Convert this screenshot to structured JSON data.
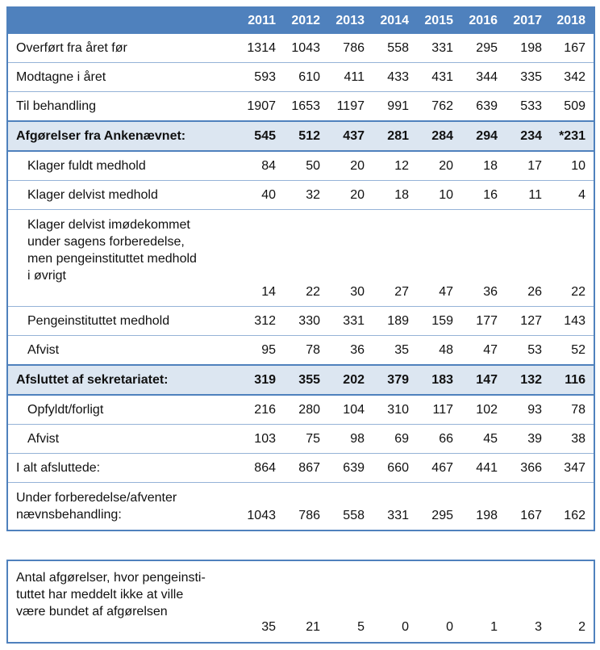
{
  "colors": {
    "header_bg": "#4f81bd",
    "header_text": "#ffffff",
    "highlight_row_bg": "#dce6f1",
    "accent_border": "#4f81bd",
    "row_separator": "#95b3d7",
    "body_text": "#111111"
  },
  "main_table": {
    "years": [
      "2011",
      "2012",
      "2013",
      "2014",
      "2015",
      "2016",
      "2017",
      "2018"
    ],
    "rows": [
      {
        "label": "Overført fra året før",
        "values": [
          "1314",
          "1043",
          "786",
          "558",
          "331",
          "295",
          "198",
          "167"
        ],
        "style": "normal",
        "indent": false
      },
      {
        "label": "Modtagne i året",
        "values": [
          "593",
          "610",
          "411",
          "433",
          "431",
          "344",
          "335",
          "342"
        ],
        "style": "normal",
        "indent": false
      },
      {
        "label": "Til behandling",
        "values": [
          "1907",
          "1653",
          "1197",
          "991",
          "762",
          "639",
          "533",
          "509"
        ],
        "style": "normal",
        "indent": false
      },
      {
        "label": "Afgørelser fra Ankenævnet:",
        "values": [
          "545",
          "512",
          "437",
          "281",
          "284",
          "294",
          "234",
          "*231"
        ],
        "style": "highlight",
        "indent": false
      },
      {
        "label": "Klager fuldt medhold",
        "values": [
          "84",
          "50",
          "20",
          "12",
          "20",
          "18",
          "17",
          "10"
        ],
        "style": "normal",
        "indent": true
      },
      {
        "label": "Klager delvist medhold",
        "values": [
          "40",
          "32",
          "20",
          "18",
          "10",
          "16",
          "11",
          "4"
        ],
        "style": "normal",
        "indent": true
      },
      {
        "label_lines": [
          "Klager delvist imødekommet",
          "under sagens forberedelse,",
          "men pengeinstituttet medhold",
          "i øvrigt"
        ],
        "values": [
          "14",
          "22",
          "30",
          "27",
          "47",
          "36",
          "26",
          "22"
        ],
        "style": "normal",
        "indent": true,
        "values_bottom": true,
        "label_pad_bottom": true
      },
      {
        "label": "Pengeinstituttet medhold",
        "values": [
          "312",
          "330",
          "331",
          "189",
          "159",
          "177",
          "127",
          "143"
        ],
        "style": "normal",
        "indent": true
      },
      {
        "label": "Afvist",
        "values": [
          "95",
          "78",
          "36",
          "35",
          "48",
          "47",
          "53",
          "52"
        ],
        "style": "normal",
        "indent": true
      },
      {
        "label": "Afsluttet af sekretariatet:",
        "values": [
          "319",
          "355",
          "202",
          "379",
          "183",
          "147",
          "132",
          "116"
        ],
        "style": "highlight",
        "indent": false
      },
      {
        "label": "Opfyldt/forligt",
        "values": [
          "216",
          "280",
          "104",
          "310",
          "117",
          "102",
          "93",
          "78"
        ],
        "style": "normal",
        "indent": true
      },
      {
        "label": "Afvist",
        "values": [
          "103",
          "75",
          "98",
          "69",
          "66",
          "45",
          "39",
          "38"
        ],
        "style": "normal",
        "indent": true
      },
      {
        "label": "I alt afsluttede:",
        "values": [
          "864",
          "867",
          "639",
          "660",
          "467",
          "441",
          "366",
          "347"
        ],
        "style": "normal",
        "indent": false
      },
      {
        "label_lines": [
          "Under forberedelse/afventer",
          "nævnsbehandling:"
        ],
        "values": [
          "1043",
          "786",
          "558",
          "331",
          "295",
          "198",
          "167",
          "162"
        ],
        "style": "normal",
        "indent": false,
        "values_bottom": true
      }
    ]
  },
  "footer_table": {
    "label_lines": [
      "Antal afgørelser, hvor pengeinsti-",
      "tuttet har meddelt ikke at ville",
      "være bundet af afgørelsen"
    ],
    "values": [
      "35",
      "21",
      "5",
      "0",
      "0",
      "1",
      "3",
      "2"
    ]
  }
}
